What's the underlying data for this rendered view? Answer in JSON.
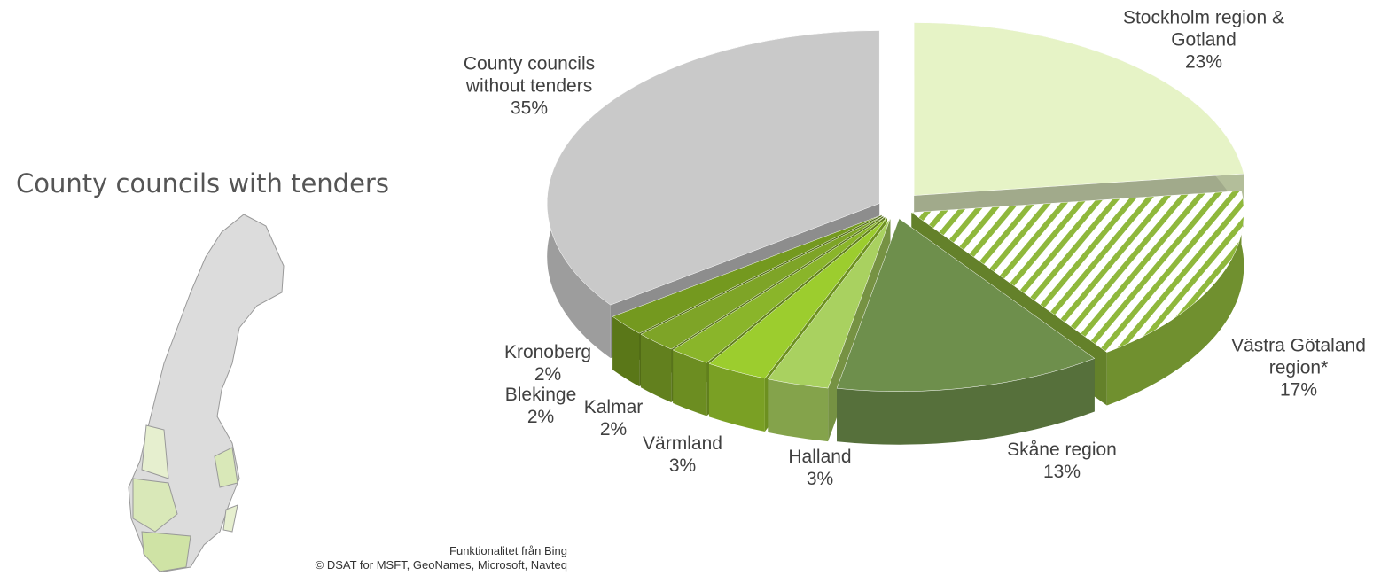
{
  "chart_data": {
    "type": "pie3d",
    "title": "County councils with tenders",
    "categories": [
      "Stockholm region & Gotland",
      "Västra Götaland region*",
      "Skåne region",
      "Halland",
      "Värmland",
      "Kalmar",
      "Blekinge",
      "Kronoberg",
      "County councils without tenders"
    ],
    "values": [
      23,
      17,
      13,
      3,
      3,
      2,
      2,
      2,
      35
    ],
    "value_labels": [
      "23%",
      "17%",
      "13%",
      "3%",
      "3%",
      "2%",
      "2%",
      "2%",
      "35%"
    ],
    "colors": [
      "#e6f3c6",
      "#8fb83c",
      "#6e8f4c",
      "#a9d160",
      "#9ccd2e",
      "#8ab52a",
      "#7ea427",
      "#74991f",
      "#c9c9c9"
    ],
    "hatched": [
      false,
      true,
      false,
      false,
      false,
      false,
      false,
      false,
      false
    ],
    "map_attribution": [
      "Funktionalitet från Bing",
      "© DSAT for MSFT, GeoNames, Microsoft, Navteq"
    ]
  }
}
